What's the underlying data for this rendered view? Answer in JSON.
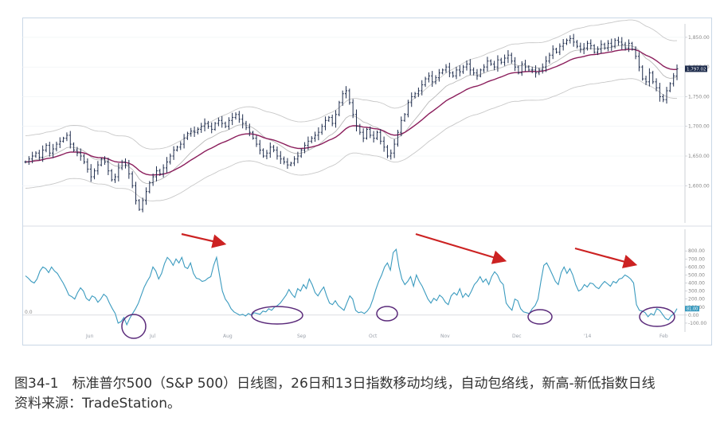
{
  "caption": {
    "line1": "图34-1　标准普尔500（S&P 500）日线图，26日和13日指数移动均线，自动包络线，新高-新低指数日线",
    "line2": "资料来源：TradeStation。"
  },
  "colors": {
    "price_bar": "#1f2d4d",
    "ema26": "#8b1e5c",
    "ema13": "#b9b9b9",
    "envelope": "#c8c8c8",
    "nhnl": "#3b9bbf",
    "arrow": "#cc2222",
    "circle": "#5a2a7a"
  },
  "chart_data": [
    {
      "type": "ohlc",
      "panel": "price",
      "x_tick_labels": [
        "Jun",
        "Jul",
        "Aug",
        "Sep",
        "Oct",
        "Nov",
        "Dec",
        "'14",
        "Feb"
      ],
      "ylim": [
        1540,
        1870
      ],
      "y_ticks": [
        1600,
        1650,
        1700,
        1750,
        1800,
        1850
      ],
      "y_tick_labels": [
        "1,600.00",
        "1,650.00",
        "1,700.00",
        "1,750.00",
        "1,800.00",
        "1,850.00"
      ],
      "last_price_label": "1,797.02",
      "close": [
        1640,
        1645,
        1650,
        1655,
        1648,
        1660,
        1668,
        1655,
        1662,
        1670,
        1675,
        1680,
        1685,
        1670,
        1660,
        1655,
        1650,
        1640,
        1628,
        1615,
        1625,
        1635,
        1645,
        1640,
        1625,
        1610,
        1615,
        1630,
        1640,
        1635,
        1620,
        1600,
        1575,
        1560,
        1575,
        1590,
        1605,
        1615,
        1625,
        1620,
        1630,
        1640,
        1650,
        1660,
        1665,
        1670,
        1680,
        1688,
        1692,
        1690,
        1695,
        1700,
        1705,
        1700,
        1695,
        1705,
        1710,
        1705,
        1700,
        1710,
        1715,
        1720,
        1712,
        1705,
        1698,
        1690,
        1680,
        1670,
        1660,
        1650,
        1655,
        1665,
        1660,
        1650,
        1645,
        1640,
        1635,
        1638,
        1645,
        1650,
        1660,
        1668,
        1675,
        1680,
        1685,
        1690,
        1700,
        1710,
        1715,
        1705,
        1720,
        1740,
        1755,
        1760,
        1740,
        1720,
        1700,
        1690,
        1680,
        1695,
        1685,
        1680,
        1690,
        1675,
        1665,
        1650,
        1655,
        1670,
        1690,
        1710,
        1720,
        1740,
        1750,
        1755,
        1760,
        1770,
        1780,
        1785,
        1775,
        1782,
        1790,
        1795,
        1800,
        1790,
        1785,
        1795,
        1792,
        1800,
        1805,
        1795,
        1790,
        1785,
        1795,
        1800,
        1810,
        1805,
        1800,
        1812,
        1808,
        1815,
        1820,
        1810,
        1800,
        1790,
        1805,
        1800,
        1795,
        1795,
        1790,
        1795,
        1800,
        1810,
        1820,
        1830,
        1825,
        1835,
        1840,
        1845,
        1848,
        1842,
        1835,
        1830,
        1832,
        1840,
        1836,
        1825,
        1830,
        1838,
        1832,
        1840,
        1835,
        1845,
        1842,
        1838,
        1832,
        1840,
        1830,
        1818,
        1800,
        1780,
        1775,
        1790,
        1775,
        1765,
        1750,
        1745,
        1760,
        1772,
        1785,
        1797
      ]
    },
    {
      "type": "line",
      "panel": "new-high-new-low",
      "ylim": [
        -180,
        1050
      ],
      "y_ticks": [
        -100,
        0,
        100,
        200,
        300,
        400,
        500,
        600,
        700,
        800
      ],
      "y_tick_labels": [
        "-100.00",
        "0.00",
        "100.00",
        "200.00",
        "300.00",
        "400.00",
        "500.00",
        "600.00",
        "700.00",
        "800.00"
      ],
      "zero_line_label": "0.0",
      "last_value_label": "81.00",
      "values": [
        490,
        460,
        420,
        400,
        450,
        550,
        600,
        580,
        530,
        600,
        550,
        520,
        460,
        400,
        330,
        250,
        230,
        200,
        280,
        340,
        300,
        210,
        180,
        240,
        220,
        160,
        200,
        260,
        230,
        150,
        80,
        20,
        -100,
        -80,
        -30,
        -120,
        -40,
        20,
        80,
        150,
        250,
        350,
        420,
        480,
        600,
        550,
        450,
        520,
        640,
        720,
        680,
        620,
        700,
        650,
        720,
        600,
        580,
        650,
        520,
        460,
        450,
        420,
        430,
        460,
        480,
        620,
        720,
        500,
        300,
        200,
        150,
        80,
        40,
        20,
        0,
        10,
        -10,
        20,
        0,
        30,
        20,
        10,
        50,
        40,
        80,
        60,
        100,
        120,
        150,
        200,
        250,
        320,
        260,
        220,
        330,
        300,
        380,
        330,
        450,
        380,
        280,
        240,
        300,
        350,
        240,
        150,
        130,
        180,
        120,
        90,
        60,
        150,
        240,
        200,
        60,
        30,
        40,
        20,
        50,
        100,
        200,
        320,
        420,
        500,
        600,
        650,
        560,
        780,
        820,
        600,
        450,
        380,
        420,
        480,
        360,
        500,
        420,
        360,
        280,
        200,
        150,
        210,
        180,
        250,
        220,
        160,
        130,
        240,
        280,
        250,
        330,
        220,
        270,
        230,
        300,
        380,
        420,
        480,
        410,
        450,
        380,
        480,
        540,
        500,
        420,
        380,
        150,
        100,
        60,
        200,
        180,
        80,
        40,
        30,
        20,
        80,
        120,
        200,
        420,
        620,
        650,
        580,
        500,
        420,
        380,
        530,
        600,
        520,
        580,
        500,
        380,
        300,
        320,
        380,
        350,
        400,
        390,
        350,
        330,
        380,
        420,
        390,
        360,
        420,
        400,
        450,
        460,
        500,
        480,
        450,
        400,
        130,
        60,
        50,
        30,
        -20,
        20,
        0,
        80,
        60,
        10,
        -40,
        -60,
        -10,
        20,
        81
      ]
    }
  ]
}
